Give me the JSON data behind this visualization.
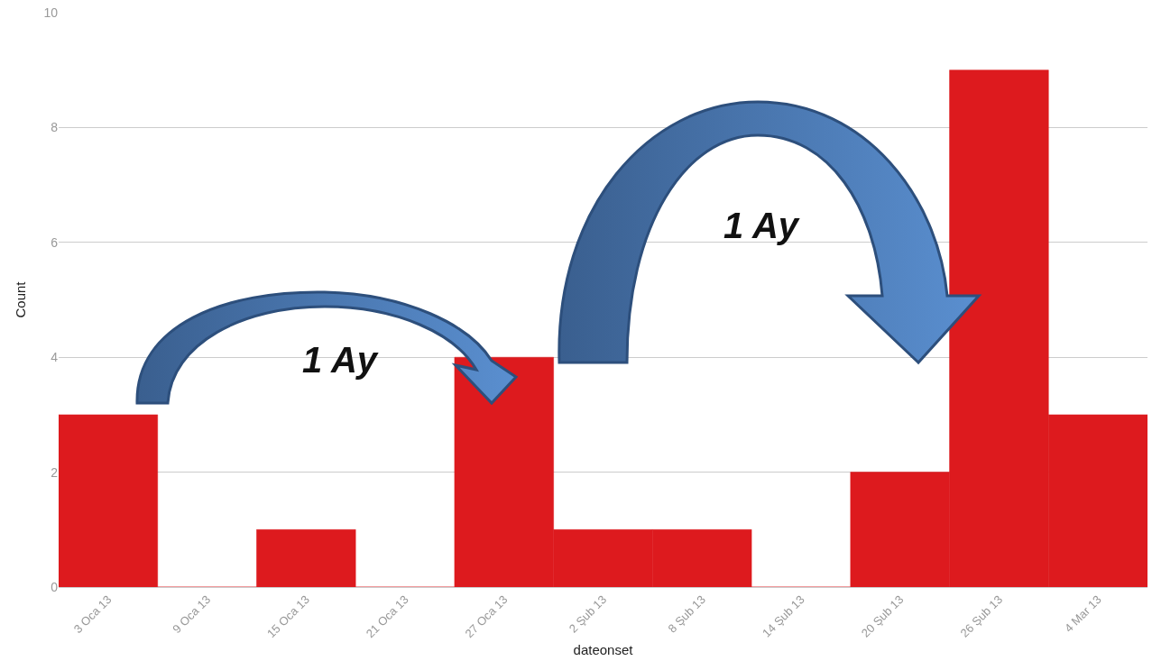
{
  "chart_data": {
    "type": "bar",
    "xlabel": "dateonset",
    "ylabel": "Count",
    "categories": [
      "3 Oca 13",
      "9 Oca 13",
      "15 Oca 13",
      "21 Oca 13",
      "27 Oca 13",
      "2 Şub 13",
      "8 Şub 13",
      "14 Şub 13",
      "20 Şub 13",
      "26 Şub 13",
      "4 Mar 13"
    ],
    "values": [
      3,
      0,
      1,
      0,
      4,
      1,
      1,
      0,
      2,
      9,
      3
    ],
    "color": "#dd1a1e",
    "ylim": [
      0,
      10
    ],
    "yticks": [
      0,
      2,
      4,
      6,
      8,
      10
    ],
    "grid": "y",
    "annotations": [
      "1 Ay",
      "1 Ay"
    ]
  }
}
